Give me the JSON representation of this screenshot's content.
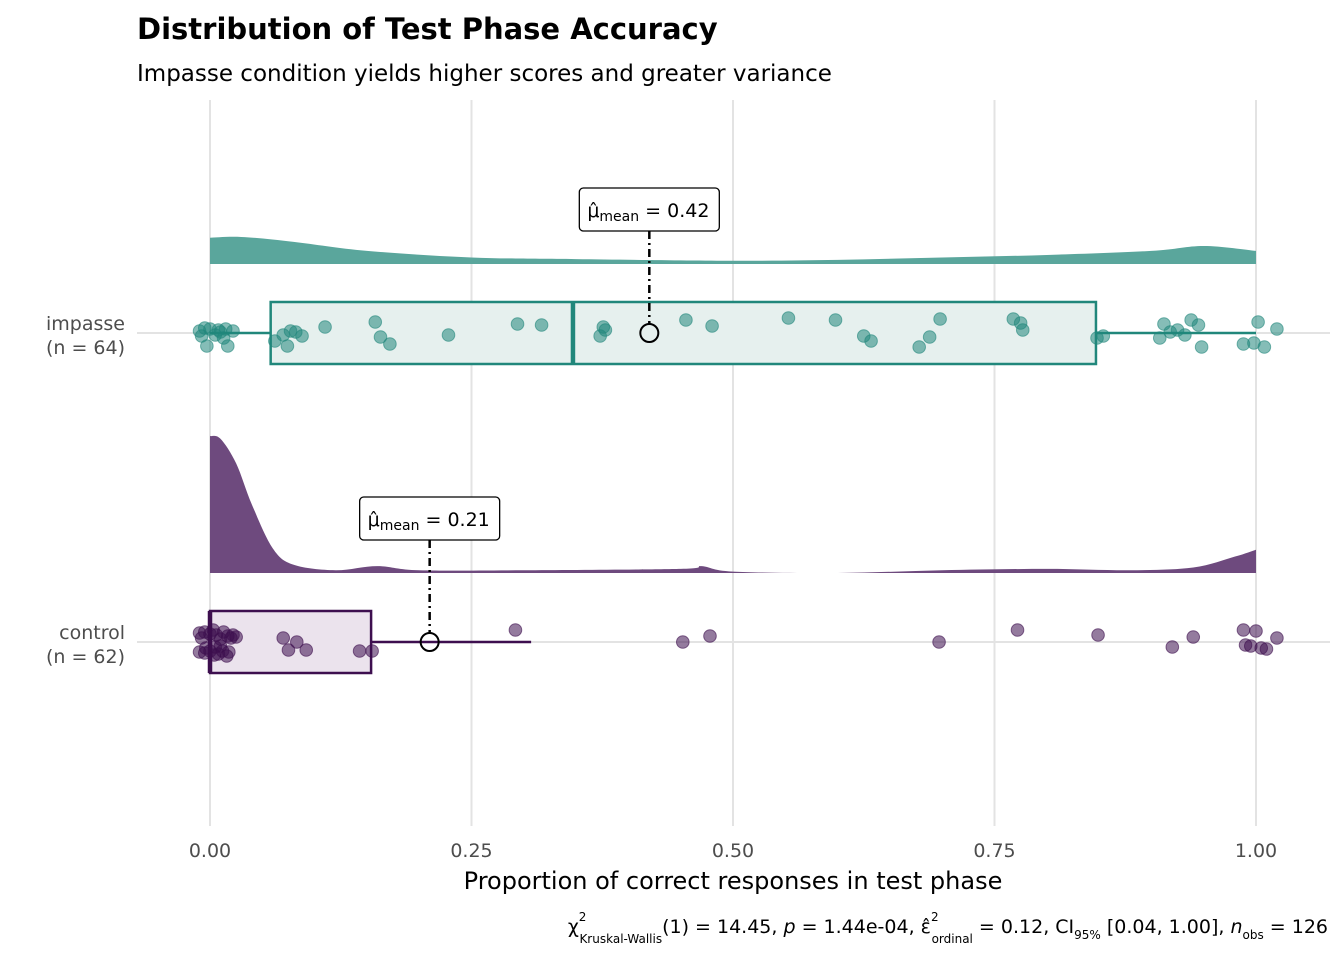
{
  "chart_data": {
    "type": "raincloud",
    "title": "Distribution of Test Phase Accuracy",
    "subtitle": "Impasse condition yields higher scores and greater variance",
    "xlabel": "Proportion of correct responses in test phase",
    "xlim": [
      -0.135,
      1.07
    ],
    "xticks": [
      "0.00",
      "0.25",
      "0.50",
      "0.75",
      "1.00"
    ],
    "xtick_values": [
      0,
      0.25,
      0.5,
      0.75,
      1.0
    ],
    "grid": true,
    "groups": [
      {
        "label_line1": "impasse",
        "label_line2": "(n = 64)",
        "color": "#21877b",
        "fill": "#e6f0ee",
        "density_color": "#5aa69c",
        "box": {
          "q1": 0.058,
          "median": 0.347,
          "q3": 0.847,
          "whisker_low": 0.0,
          "whisker_high": 1.0
        },
        "mean": 0.42,
        "mean_label_sym": "μ̂",
        "mean_label_sub": "mean",
        "mean_label_val": " = 0.42",
        "density": [
          [
            0,
            0.32
          ],
          [
            0.03,
            0.33
          ],
          [
            0.08,
            0.27
          ],
          [
            0.15,
            0.16
          ],
          [
            0.25,
            0.08
          ],
          [
            0.35,
            0.06
          ],
          [
            0.5,
            0.04
          ],
          [
            0.6,
            0.05
          ],
          [
            0.7,
            0.08
          ],
          [
            0.8,
            0.11
          ],
          [
            0.9,
            0.16
          ],
          [
            0.95,
            0.22
          ],
          [
            1.0,
            0.16
          ]
        ],
        "points": [
          [
            -0.01,
            -2
          ],
          [
            -0.005,
            -5
          ],
          [
            0.0,
            -4
          ],
          [
            0.005,
            2
          ],
          [
            -0.008,
            3
          ],
          [
            0.01,
            -1
          ],
          [
            0.015,
            -4
          ],
          [
            -0.003,
            13
          ],
          [
            0.013,
            5
          ],
          [
            0.017,
            13
          ],
          [
            0.008,
            -3
          ],
          [
            0.022,
            -2
          ],
          [
            0.062,
            8
          ],
          [
            0.07,
            2
          ],
          [
            0.074,
            13
          ],
          [
            0.077,
            -2
          ],
          [
            0.082,
            -1
          ],
          [
            0.088,
            3
          ],
          [
            0.11,
            -6
          ],
          [
            0.158,
            -11
          ],
          [
            0.163,
            4
          ],
          [
            0.172,
            11
          ],
          [
            0.228,
            2
          ],
          [
            0.294,
            -9
          ],
          [
            0.317,
            -8
          ],
          [
            0.373,
            3
          ],
          [
            0.376,
            -6
          ],
          [
            0.378,
            -3
          ],
          [
            0.455,
            -13
          ],
          [
            0.48,
            -7
          ],
          [
            0.553,
            -15
          ],
          [
            0.598,
            -13
          ],
          [
            0.625,
            3
          ],
          [
            0.632,
            8
          ],
          [
            0.678,
            14
          ],
          [
            0.688,
            4
          ],
          [
            0.698,
            -14
          ],
          [
            0.768,
            -14
          ],
          [
            0.775,
            -10
          ],
          [
            0.777,
            -3
          ],
          [
            0.848,
            5
          ],
          [
            0.854,
            3
          ],
          [
            0.908,
            5
          ],
          [
            0.912,
            -9
          ],
          [
            0.918,
            -1
          ],
          [
            0.925,
            -3
          ],
          [
            0.932,
            2
          ],
          [
            0.938,
            -13
          ],
          [
            0.945,
            -8
          ],
          [
            0.948,
            14
          ],
          [
            0.988,
            11
          ],
          [
            0.998,
            10
          ],
          [
            1.002,
            -11
          ],
          [
            1.008,
            14
          ],
          [
            1.02,
            -4
          ]
        ]
      },
      {
        "label_line1": "control",
        "label_line2": "(n = 62)",
        "color": "#3d0f4f",
        "fill": "#ebe3ed",
        "density_color": "#6e4a7e",
        "box": {
          "q1": 0.0,
          "median": 0.0,
          "q3": 0.154,
          "whisker_low": 0.0,
          "whisker_high": 0.307
        },
        "mean": 0.21,
        "mean_label_sym": "μ̂",
        "mean_label_sub": "mean",
        "mean_label_val": " = 0.21",
        "density": [
          [
            0,
            1.0
          ],
          [
            0.01,
            0.98
          ],
          [
            0.025,
            0.8
          ],
          [
            0.04,
            0.5
          ],
          [
            0.06,
            0.18
          ],
          [
            0.08,
            0.06
          ],
          [
            0.12,
            0.02
          ],
          [
            0.16,
            0.05
          ],
          [
            0.2,
            0.02
          ],
          [
            0.3,
            0.02
          ],
          [
            0.45,
            0.03
          ],
          [
            0.47,
            0.05
          ],
          [
            0.5,
            0.01
          ],
          [
            0.6,
            0.0
          ],
          [
            0.7,
            0.02
          ],
          [
            0.8,
            0.03
          ],
          [
            0.88,
            0.02
          ],
          [
            0.94,
            0.04
          ],
          [
            0.98,
            0.12
          ],
          [
            1.0,
            0.17
          ]
        ],
        "points": [
          [
            -0.01,
            -9
          ],
          [
            -0.005,
            -10
          ],
          [
            -0.008,
            -4
          ],
          [
            0.0,
            -8
          ],
          [
            0.003,
            -12
          ],
          [
            0.006,
            -7
          ],
          [
            0.01,
            -3
          ],
          [
            0.013,
            -10
          ],
          [
            0.017,
            -6
          ],
          [
            0.02,
            -4
          ],
          [
            -0.01,
            10
          ],
          [
            -0.005,
            11
          ],
          [
            0.0,
            9
          ],
          [
            0.004,
            13
          ],
          [
            0.008,
            12
          ],
          [
            0.012,
            9
          ],
          [
            0.016,
            14
          ],
          [
            0.018,
            10
          ],
          [
            0.022,
            -7
          ],
          [
            0.025,
            -5
          ],
          [
            0.005,
            5
          ],
          [
            -0.004,
            6
          ],
          [
            0.01,
            4
          ],
          [
            0.07,
            -4
          ],
          [
            0.075,
            8
          ],
          [
            0.083,
            0
          ],
          [
            0.092,
            8
          ],
          [
            0.143,
            9
          ],
          [
            0.155,
            9
          ],
          [
            0.292,
            -12
          ],
          [
            0.452,
            0
          ],
          [
            0.478,
            -6
          ],
          [
            0.697,
            0
          ],
          [
            0.772,
            -12
          ],
          [
            0.849,
            -7
          ],
          [
            0.92,
            5
          ],
          [
            0.94,
            -5
          ],
          [
            0.988,
            -12
          ],
          [
            0.99,
            3
          ],
          [
            0.995,
            4
          ],
          [
            1.0,
            -11
          ],
          [
            1.005,
            6
          ],
          [
            1.01,
            7
          ],
          [
            1.02,
            -4
          ]
        ]
      }
    ]
  },
  "stats": {
    "chi_sym": "χ",
    "chi_sup": "2",
    "chi_sub": "Kruskal-Wallis",
    "df_part": "(1)",
    "chi_val": " = 14.45, ",
    "p_sym": "p",
    "p_val": " = 1.44e-04, ",
    "eps_sym": "ε̂",
    "eps_sup": "2",
    "eps_sub": "ordinal",
    "eps_val": " = 0.12, CI",
    "ci_sub": "95%",
    "ci_val": " [0.04, 1.00], ",
    "n_sym": "n",
    "n_sub": "obs",
    "n_val": " = 126"
  }
}
